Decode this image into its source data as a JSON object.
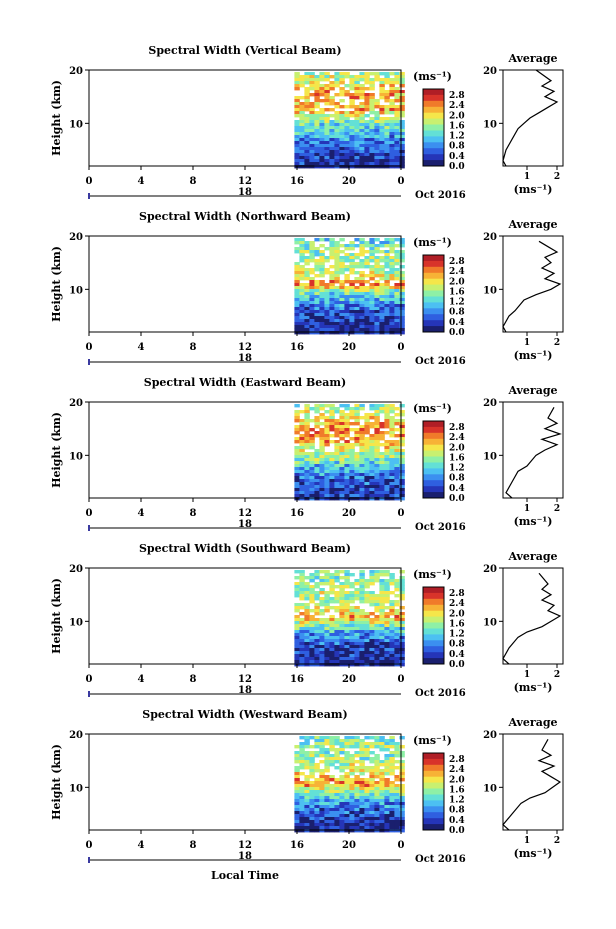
{
  "figure": {
    "xlabel": "Local Time",
    "colors": [
      "#1a1f6e",
      "#2535b8",
      "#2f5fe0",
      "#3b8ff0",
      "#4cc0f2",
      "#63e0d6",
      "#8ef0a6",
      "#c8f070",
      "#f5e64a",
      "#f7b236",
      "#f07a2a",
      "#d8332a",
      "#b01e26"
    ],
    "no_data_color": "#ffffff"
  },
  "panels": [
    {
      "title": "Spectral Width (Vertical Beam)",
      "ylabel": "Height (km)",
      "yticks": [
        "20",
        "10"
      ],
      "xticks": [
        "0",
        "4",
        "8",
        "12",
        "16",
        "20",
        "0"
      ],
      "date_label": "18",
      "month_label": "Oct 2016",
      "cbar_unit": "(ms⁻¹)",
      "cbar_ticks": [
        "2.8",
        "2.4",
        "2.0",
        "1.6",
        "1.2",
        "0.8",
        "0.4",
        "0.0"
      ],
      "avg_title": "Average",
      "avg_yticks": [
        "20",
        "10"
      ],
      "avg_xticks": [
        "1",
        "2"
      ],
      "avg_xlabel": "(ms⁻¹)"
    },
    {
      "title": "Spectral Width (Northward Beam)",
      "ylabel": "Height (km)",
      "yticks": [
        "20",
        "10"
      ],
      "xticks": [
        "0",
        "4",
        "8",
        "12",
        "16",
        "20",
        "0"
      ],
      "date_label": "18",
      "month_label": "Oct 2016",
      "cbar_unit": "(ms⁻¹)",
      "cbar_ticks": [
        "2.8",
        "2.4",
        "2.0",
        "1.6",
        "1.2",
        "0.8",
        "0.4",
        "0.0"
      ],
      "avg_title": "Average",
      "avg_yticks": [
        "20",
        "10"
      ],
      "avg_xticks": [
        "1",
        "2"
      ],
      "avg_xlabel": "(ms⁻¹)"
    },
    {
      "title": "Spectral Width (Eastward Beam)",
      "ylabel": "Height (km)",
      "yticks": [
        "20",
        "10"
      ],
      "xticks": [
        "0",
        "4",
        "8",
        "12",
        "16",
        "20",
        "0"
      ],
      "date_label": "18",
      "month_label": "Oct 2016",
      "cbar_unit": "(ms⁻¹)",
      "cbar_ticks": [
        "2.8",
        "2.4",
        "2.0",
        "1.6",
        "1.2",
        "0.8",
        "0.4",
        "0.0"
      ],
      "avg_title": "Average",
      "avg_yticks": [
        "20",
        "10"
      ],
      "avg_xticks": [
        "1",
        "2"
      ],
      "avg_xlabel": "(ms⁻¹)"
    },
    {
      "title": "Spectral Width (Southward Beam)",
      "ylabel": "Height (km)",
      "yticks": [
        "20",
        "10"
      ],
      "xticks": [
        "0",
        "4",
        "8",
        "12",
        "16",
        "20",
        "0"
      ],
      "date_label": "18",
      "month_label": "Oct 2016",
      "cbar_unit": "(ms⁻¹)",
      "cbar_ticks": [
        "2.8",
        "2.4",
        "2.0",
        "1.6",
        "1.2",
        "0.8",
        "0.4",
        "0.0"
      ],
      "avg_title": "Average",
      "avg_yticks": [
        "20",
        "10"
      ],
      "avg_xticks": [
        "1",
        "2"
      ],
      "avg_xlabel": "(ms⁻¹)"
    },
    {
      "title": "Spectral Width (Westward Beam)",
      "ylabel": "Height (km)",
      "yticks": [
        "20",
        "10"
      ],
      "xticks": [
        "0",
        "4",
        "8",
        "12",
        "16",
        "20",
        "0"
      ],
      "date_label": "18",
      "month_label": "Oct 2016",
      "cbar_unit": "(ms⁻¹)",
      "cbar_ticks": [
        "2.8",
        "2.4",
        "2.0",
        "1.6",
        "1.2",
        "0.8",
        "0.4",
        "0.0"
      ],
      "avg_title": "Average",
      "avg_yticks": [
        "20",
        "10"
      ],
      "avg_xticks": [
        "1",
        "2"
      ],
      "avg_xlabel": "(ms⁻¹)"
    }
  ],
  "chart_data": [
    {
      "type": "heatmap",
      "title": "Spectral Width (Vertical Beam)",
      "xlabel": "Local Time",
      "ylabel": "Height (km)",
      "xlim": [
        0,
        24
      ],
      "ylim": [
        2,
        20
      ],
      "data_start_hour": 15.8,
      "clim": [
        0,
        3.0
      ],
      "profile": [
        [
          2,
          0.2
        ],
        [
          4,
          0.4
        ],
        [
          6,
          0.6
        ],
        [
          8,
          0.9
        ],
        [
          10,
          1.3
        ],
        [
          12,
          1.9
        ],
        [
          13,
          2.2
        ],
        [
          14,
          2.1
        ],
        [
          16,
          2.3
        ],
        [
          18,
          1.8
        ],
        [
          20,
          1.6
        ]
      ],
      "average": {
        "type": "line",
        "x": [
          0.3,
          0.2,
          0.3,
          0.5,
          0.7,
          0.9,
          1.1,
          1.4,
          1.7,
          2.0,
          1.6,
          1.9,
          1.5,
          1.8,
          1.3
        ],
        "y": [
          2,
          3,
          5,
          7,
          9,
          10,
          11,
          12,
          13,
          14,
          15,
          16,
          17,
          18,
          20
        ],
        "xlim": [
          0.2,
          2.2
        ],
        "ylim": [
          2,
          20
        ]
      }
    },
    {
      "type": "heatmap",
      "title": "Spectral Width (Northward Beam)",
      "xlabel": "Local Time",
      "ylabel": "Height (km)",
      "xlim": [
        0,
        24
      ],
      "ylim": [
        2,
        20
      ],
      "data_start_hour": 15.8,
      "clim": [
        0,
        3.0
      ],
      "profile": [
        [
          2,
          0.2
        ],
        [
          4,
          0.3
        ],
        [
          6,
          0.5
        ],
        [
          8,
          0.9
        ],
        [
          10,
          1.5
        ],
        [
          11,
          2.4
        ],
        [
          12,
          2.1
        ],
        [
          14,
          1.6
        ],
        [
          16,
          1.6
        ],
        [
          18,
          1.5
        ],
        [
          20,
          1.2
        ]
      ],
      "average": {
        "type": "line",
        "x": [
          0.3,
          0.2,
          0.4,
          0.6,
          0.9,
          1.3,
          1.8,
          2.1,
          1.6,
          1.9,
          1.5,
          1.8,
          1.6,
          2.0,
          1.7,
          1.4
        ],
        "y": [
          2,
          3,
          5,
          6,
          8,
          9,
          10,
          11,
          12,
          13,
          14,
          15,
          16,
          17,
          18,
          19
        ],
        "xlim": [
          0.2,
          2.2
        ],
        "ylim": [
          2,
          20
        ]
      }
    },
    {
      "type": "heatmap",
      "title": "Spectral Width (Eastward Beam)",
      "xlabel": "Local Time",
      "ylabel": "Height (km)",
      "xlim": [
        0,
        24
      ],
      "ylim": [
        2,
        20
      ],
      "data_start_hour": 15.8,
      "clim": [
        0,
        3.0
      ],
      "profile": [
        [
          2,
          0.3
        ],
        [
          4,
          0.4
        ],
        [
          6,
          0.6
        ],
        [
          8,
          1.0
        ],
        [
          10,
          1.6
        ],
        [
          12,
          2.0
        ],
        [
          14,
          2.3
        ],
        [
          16,
          2.2
        ],
        [
          18,
          1.8
        ],
        [
          20,
          1.4
        ]
      ],
      "average": {
        "type": "line",
        "x": [
          0.5,
          0.3,
          0.5,
          0.7,
          1.0,
          1.3,
          1.6,
          2.0,
          1.5,
          2.1,
          1.6,
          2.0,
          1.7,
          1.9
        ],
        "y": [
          2,
          3,
          5,
          7,
          8,
          10,
          11,
          12,
          13,
          14,
          15,
          16,
          17,
          19
        ],
        "xlim": [
          0.2,
          2.2
        ],
        "ylim": [
          2,
          20
        ]
      }
    },
    {
      "type": "heatmap",
      "title": "Spectral Width (Southward Beam)",
      "xlabel": "Local Time",
      "ylabel": "Height (km)",
      "xlim": [
        0,
        24
      ],
      "ylim": [
        2,
        20
      ],
      "data_start_hour": 15.8,
      "clim": [
        0,
        3.0
      ],
      "profile": [
        [
          2,
          0.2
        ],
        [
          4,
          0.3
        ],
        [
          6,
          0.5
        ],
        [
          8,
          0.9
        ],
        [
          10,
          1.7
        ],
        [
          11,
          2.3
        ],
        [
          12,
          2.0
        ],
        [
          14,
          1.6
        ],
        [
          16,
          1.7
        ],
        [
          18,
          1.5
        ],
        [
          20,
          1.3
        ]
      ],
      "average": {
        "type": "line",
        "x": [
          0.4,
          0.2,
          0.4,
          0.7,
          1.0,
          1.5,
          2.1,
          1.7,
          1.9,
          1.5,
          1.8,
          1.5,
          1.7,
          1.4
        ],
        "y": [
          2,
          3,
          5,
          7,
          8,
          9,
          11,
          12,
          13,
          14,
          15,
          16,
          17,
          19
        ],
        "xlim": [
          0.2,
          2.2
        ],
        "ylim": [
          2,
          20
        ]
      }
    },
    {
      "type": "heatmap",
      "title": "Spectral Width (Westward Beam)",
      "xlabel": "Local Time",
      "ylabel": "Height (km)",
      "xlim": [
        0,
        24
      ],
      "ylim": [
        2,
        20
      ],
      "data_start_hour": 15.8,
      "clim": [
        0,
        3.0
      ],
      "profile": [
        [
          2,
          0.2
        ],
        [
          4,
          0.3
        ],
        [
          6,
          0.6
        ],
        [
          8,
          1.0
        ],
        [
          10,
          1.8
        ],
        [
          11,
          2.4
        ],
        [
          12,
          2.1
        ],
        [
          14,
          1.7
        ],
        [
          16,
          1.5
        ],
        [
          18,
          1.6
        ],
        [
          20,
          1.3
        ]
      ],
      "average": {
        "type": "line",
        "x": [
          0.4,
          0.2,
          0.5,
          0.8,
          1.1,
          1.6,
          2.1,
          1.8,
          1.5,
          1.9,
          1.4,
          1.8,
          1.5,
          1.7
        ],
        "y": [
          2,
          3,
          5,
          7,
          8,
          9,
          11,
          12,
          13,
          14,
          15,
          16,
          17,
          19
        ],
        "xlim": [
          0.2,
          2.2
        ],
        "ylim": [
          2,
          20
        ]
      }
    }
  ]
}
